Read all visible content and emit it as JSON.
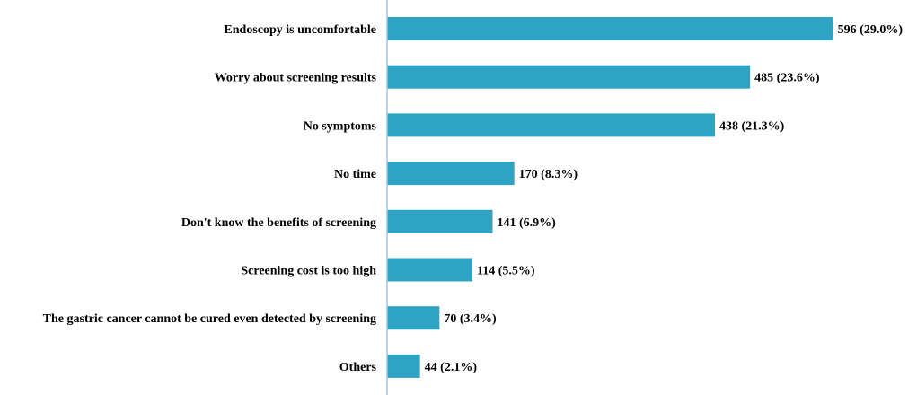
{
  "chart_data": {
    "type": "bar",
    "orientation": "horizontal",
    "title": "",
    "xlabel": "",
    "ylabel": "",
    "categories": [
      "Endoscopy is uncomfortable",
      "Worry about screening results",
      "No symptoms",
      "No time",
      "Don't know the benefits of screening",
      "Screening cost is too high",
      "The gastric cancer cannot be cured even detected by screening",
      "Others"
    ],
    "values": [
      596,
      485,
      438,
      170,
      141,
      114,
      70,
      44
    ],
    "data_labels": [
      "596 (29.0%)",
      "485 (23.6%)",
      "438 (21.3%)",
      "170 (8.3%)",
      "141 (6.9%)",
      "114 (5.5%)",
      "70 (3.4%)",
      "44 (2.1%)"
    ],
    "xlim": [
      0,
      600
    ],
    "grid": false,
    "legend": "none",
    "bar_color": "#2FA3C3",
    "axis_color": "#A9C4DC"
  }
}
